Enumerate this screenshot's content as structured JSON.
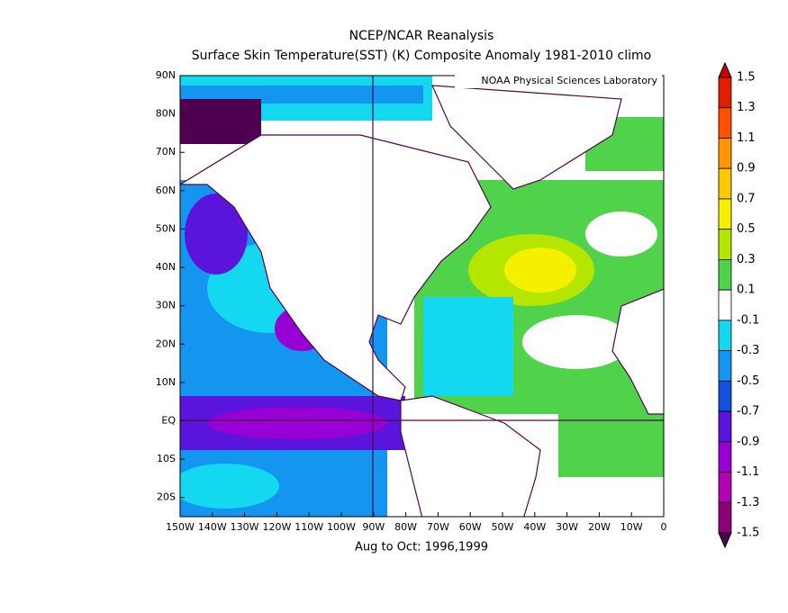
{
  "chart_data": {
    "type": "map",
    "title": "NCEP/NCAR Reanalysis",
    "subtitle": "Surface Skin Temperature(SST) (K) Composite Anomaly 1981-2010 climo",
    "credit": "NOAA Physical Sciences Laboratory",
    "footer": "Aug to Oct: 1996,1999",
    "xlim": [
      -150,
      0
    ],
    "ylim": [
      -25,
      90
    ],
    "xticks": [
      {
        "value": -150,
        "label": "150W"
      },
      {
        "value": -140,
        "label": "140W"
      },
      {
        "value": -130,
        "label": "130W"
      },
      {
        "value": -120,
        "label": "120W"
      },
      {
        "value": -110,
        "label": "110W"
      },
      {
        "value": -100,
        "label": "100W"
      },
      {
        "value": -90,
        "label": "90W"
      },
      {
        "value": -80,
        "label": "80W"
      },
      {
        "value": -70,
        "label": "70W"
      },
      {
        "value": -60,
        "label": "60W"
      },
      {
        "value": -50,
        "label": "50W"
      },
      {
        "value": -40,
        "label": "40W"
      },
      {
        "value": -30,
        "label": "30W"
      },
      {
        "value": -20,
        "label": "20W"
      },
      {
        "value": -10,
        "label": "10W"
      },
      0
    ],
    "yticks": [
      {
        "value": 90,
        "label": "90N"
      },
      {
        "value": 80,
        "label": "80N"
      },
      {
        "value": 70,
        "label": "70N"
      },
      {
        "value": 60,
        "label": "60N"
      },
      {
        "value": 50,
        "label": "50N"
      },
      {
        "value": 40,
        "label": "40N"
      },
      {
        "value": 30,
        "label": "30N"
      },
      {
        "value": 20,
        "label": "20N"
      },
      {
        "value": 10,
        "label": "10N"
      },
      {
        "value": 0,
        "label": "EQ"
      },
      {
        "value": -10,
        "label": "10S"
      },
      {
        "value": -20,
        "label": "20S"
      }
    ],
    "colorbar": {
      "levels": [
        1.5,
        1.3,
        1.1,
        0.9,
        0.7,
        0.5,
        0.3,
        0.1,
        -0.1,
        -0.3,
        -0.5,
        -0.7,
        -0.9,
        -1.1,
        -1.3,
        -1.5
      ],
      "colors": [
        "#c80000",
        "#e01e00",
        "#ff5000",
        "#ff9600",
        "#ffc800",
        "#f5f000",
        "#b4e600",
        "#50d24b",
        "#ffffff",
        "#14d7f0",
        "#1496f0",
        "#1450dc",
        "#5a14dc",
        "#9600d2",
        "#b400b4",
        "#8c0078",
        "#500050"
      ]
    }
  }
}
